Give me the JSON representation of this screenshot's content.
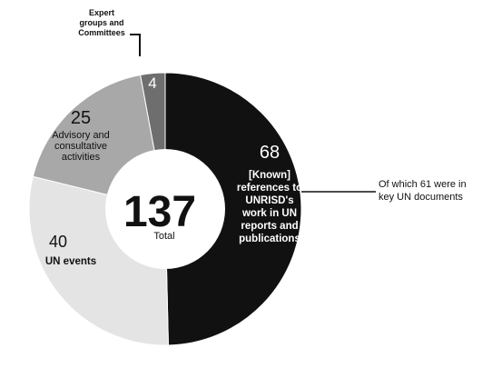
{
  "chart_data": {
    "type": "pie",
    "donut": true,
    "total": 137,
    "total_label": "Total",
    "slices": [
      {
        "value": 68,
        "label_lines": [
          "[Known]",
          "references to",
          "UNRISD's",
          "work in UN",
          "reports and",
          "publications"
        ],
        "color": "#111111",
        "text_color": "#ffffff",
        "callout": [
          "Of which 61 were in",
          "key UN documents"
        ]
      },
      {
        "value": 40,
        "label_lines": [
          "UN events"
        ],
        "color": "#e4e4e4",
        "text_color": "#111111"
      },
      {
        "value": 25,
        "label_lines": [
          "Advisory and",
          "consultative",
          "activities"
        ],
        "color": "#a8a8a8",
        "text_color": "#111111"
      },
      {
        "value": 4,
        "label_lines": [],
        "color": "#6e6e6e",
        "text_color": "#ffffff",
        "callout": [
          "Expert",
          "groups and",
          "Committees"
        ]
      }
    ]
  }
}
